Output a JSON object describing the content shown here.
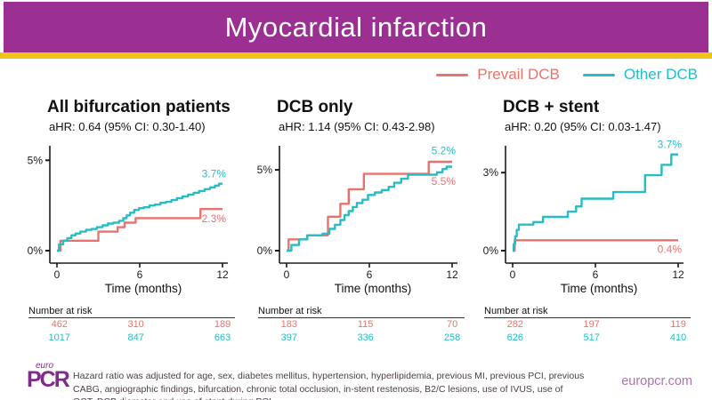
{
  "colors": {
    "header_bg": "#9B3092",
    "accent_bar": "#F0C51B",
    "prevail": "#E8736E",
    "other": "#26BDC4",
    "axis": "#1a1a1a",
    "logo_purple": "#7E2C87",
    "site_text": "#A973AE",
    "note_text": "#4B4048"
  },
  "header": {
    "title": "Myocardial infarction"
  },
  "legend": {
    "items": [
      {
        "label": "Prevail DCB",
        "color_key": "prevail"
      },
      {
        "label": "Other DCB",
        "color_key": "other"
      }
    ]
  },
  "footer": {
    "note": "Hazard ratio was adjusted for age, sex, diabetes mellitus, hypertension, hyperlipidemia, previous MI, previous PCI, previous CABG, angiographic findings, bifurcation, chronic total occlusion, in-stent restenosis, B2/C lesions, use of IVUS, use of OCT, DCB diameter and use of stent during PCI.",
    "site": "europcr.com",
    "logo_top": "euro",
    "logo_main": "PCR"
  },
  "chart_data": {
    "type": "line",
    "subtype": "kaplan-meier-step-curves",
    "xlabel": "Time (months)",
    "x_ticks": [
      0,
      6,
      12
    ],
    "x_range": [
      0,
      12
    ],
    "panels": [
      {
        "title": "All bifurcation patients",
        "ahr": "aHR: 0.64 (95% CI: 0.30-1.40)",
        "y_ticks": [
          "0%",
          "5%"
        ],
        "y_tick_values": [
          0,
          5
        ],
        "y_max": 5.9,
        "series": [
          {
            "name": "Prevail DCB",
            "color_key": "prevail",
            "end_value": 2.3,
            "end_label": "2.3%",
            "label_dy": 15,
            "steps": [
              [
                0,
                0
              ],
              [
                0.25,
                0.55
              ],
              [
                3,
                1.05
              ],
              [
                4.4,
                1.3
              ],
              [
                4.9,
                1.55
              ],
              [
                5.7,
                1.8
              ],
              [
                10.4,
                2.3
              ],
              [
                12,
                2.3
              ]
            ]
          },
          {
            "name": "Other DCB",
            "color_key": "other",
            "end_value": 3.7,
            "end_label": "3.7%",
            "label_dy": -7,
            "steps": [
              [
                0,
                0
              ],
              [
                0.15,
                0.35
              ],
              [
                0.45,
                0.55
              ],
              [
                0.75,
                0.7
              ],
              [
                1.05,
                0.85
              ],
              [
                1.35,
                0.95
              ],
              [
                1.7,
                1.05
              ],
              [
                2.1,
                1.15
              ],
              [
                2.5,
                1.2
              ],
              [
                2.9,
                1.3
              ],
              [
                3.3,
                1.4
              ],
              [
                3.7,
                1.5
              ],
              [
                4.1,
                1.55
              ],
              [
                4.5,
                1.65
              ],
              [
                4.8,
                1.8
              ],
              [
                5.05,
                1.95
              ],
              [
                5.3,
                2.1
              ],
              [
                5.6,
                2.25
              ],
              [
                5.95,
                2.35
              ],
              [
                6.3,
                2.4
              ],
              [
                6.7,
                2.5
              ],
              [
                7.1,
                2.55
              ],
              [
                7.5,
                2.65
              ],
              [
                7.9,
                2.7
              ],
              [
                8.3,
                2.8
              ],
              [
                8.7,
                2.9
              ],
              [
                9.1,
                3.0
              ],
              [
                9.5,
                3.1
              ],
              [
                9.9,
                3.2
              ],
              [
                10.3,
                3.3
              ],
              [
                10.7,
                3.4
              ],
              [
                11.1,
                3.5
              ],
              [
                11.45,
                3.6
              ],
              [
                11.75,
                3.7
              ],
              [
                12,
                3.7
              ]
            ]
          }
        ],
        "risk_label": "Number at risk",
        "risk_rows": [
          [
            "462",
            "310",
            "189"
          ],
          [
            "1017",
            "847",
            "663"
          ]
        ]
      },
      {
        "title": "DCB only",
        "ahr": "aHR: 1.14 (95% CI: 0.43-2.98)",
        "y_ticks": [
          "0%",
          "5%"
        ],
        "y_tick_values": [
          0,
          5
        ],
        "y_max": 6.6,
        "series": [
          {
            "name": "Prevail DCB",
            "color_key": "prevail",
            "end_value": 5.5,
            "end_label": "5.5%",
            "label_dy": 26,
            "steps": [
              [
                0,
                0
              ],
              [
                0.15,
                0.7
              ],
              [
                1.5,
                0.95
              ],
              [
                3.0,
                2.1
              ],
              [
                3.9,
                2.9
              ],
              [
                4.5,
                3.8
              ],
              [
                5.6,
                4.75
              ],
              [
                10.3,
                5.5
              ],
              [
                12,
                5.5
              ]
            ]
          },
          {
            "name": "Other DCB",
            "color_key": "other",
            "end_value": 5.2,
            "end_label": "5.2%",
            "label_dy": -14,
            "steps": [
              [
                0,
                0
              ],
              [
                0.35,
                0.35
              ],
              [
                0.9,
                0.7
              ],
              [
                1.5,
                0.95
              ],
              [
                2.6,
                1.05
              ],
              [
                3.1,
                1.35
              ],
              [
                3.5,
                1.6
              ],
              [
                3.9,
                1.9
              ],
              [
                4.2,
                2.2
              ],
              [
                4.5,
                2.45
              ],
              [
                4.8,
                2.7
              ],
              [
                5.1,
                2.95
              ],
              [
                5.5,
                3.15
              ],
              [
                5.9,
                3.45
              ],
              [
                6.4,
                3.6
              ],
              [
                6.9,
                3.75
              ],
              [
                7.4,
                3.95
              ],
              [
                7.8,
                4.2
              ],
              [
                8.3,
                4.45
              ],
              [
                8.8,
                4.7
              ],
              [
                10.9,
                4.85
              ],
              [
                11.3,
                5.05
              ],
              [
                11.6,
                5.2
              ],
              [
                12,
                5.2
              ]
            ]
          }
        ],
        "risk_label": "Number at risk",
        "risk_rows": [
          [
            "183",
            "115",
            "70"
          ],
          [
            "397",
            "336",
            "258"
          ]
        ]
      },
      {
        "title": "DCB + stent",
        "ahr": "aHR: 0.20 (95% CI: 0.03-1.47)",
        "y_ticks": [
          "0%",
          "3%"
        ],
        "y_tick_values": [
          0,
          3
        ],
        "y_max": 4.1,
        "series": [
          {
            "name": "Prevail DCB",
            "color_key": "prevail",
            "end_value": 0.4,
            "end_label": "0.4%",
            "label_dy": 14,
            "steps": [
              [
                0,
                0
              ],
              [
                0.15,
                0.4
              ],
              [
                12,
                0.4
              ]
            ]
          },
          {
            "name": "Other DCB",
            "color_key": "other",
            "end_value": 3.7,
            "end_label": "3.7%",
            "label_dy": -7,
            "steps": [
              [
                0,
                0
              ],
              [
                0.08,
                0.25
              ],
              [
                0.18,
                0.55
              ],
              [
                0.3,
                0.8
              ],
              [
                0.45,
                1.0
              ],
              [
                1.5,
                1.1
              ],
              [
                2.2,
                1.3
              ],
              [
                4.0,
                1.5
              ],
              [
                4.6,
                1.7
              ],
              [
                5.0,
                2.0
              ],
              [
                7.3,
                2.25
              ],
              [
                9.6,
                2.9
              ],
              [
                10.8,
                3.3
              ],
              [
                11.5,
                3.7
              ],
              [
                12,
                3.7
              ]
            ]
          }
        ],
        "risk_label": "Number at risk",
        "risk_rows": [
          [
            "282",
            "197",
            "119"
          ],
          [
            "626",
            "517",
            "410"
          ]
        ]
      }
    ]
  }
}
